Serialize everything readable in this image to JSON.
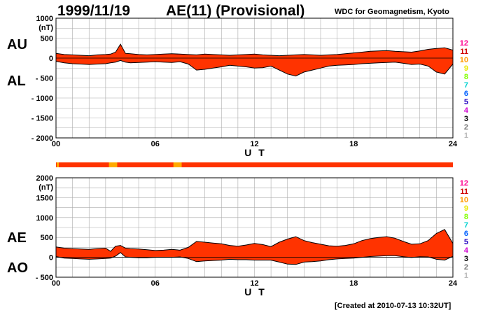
{
  "header": {
    "date": "1999/11/19",
    "title": "AE(11) (Provisional)",
    "institution": "WDC for Geomagnetism, Kyoto",
    "created": "[Created at 2010-07-13 10:32UT]"
  },
  "legend": {
    "values": [
      "12",
      "11",
      "10",
      "9",
      "8",
      "7",
      "6",
      "5",
      "4",
      "3",
      "2",
      "1"
    ],
    "colors": [
      "#ff0090",
      "#d00000",
      "#ff9900",
      "#e8e800",
      "#80ff00",
      "#00d0d0",
      "#0060ff",
      "#2000c0",
      "#d000d0",
      "#000000",
      "#777777",
      "#bbbbbb"
    ]
  },
  "colors": {
    "fill": "#ff3300",
    "fill_low": "#ffaa00",
    "grid": "#aaaaaa",
    "line": "#000000"
  },
  "chart_data": [
    {
      "type": "area",
      "panel": "top",
      "xlabel": "U T",
      "ylabel": "(nT)",
      "xlim": [
        0,
        24
      ],
      "ylim": [
        -2000,
        1000
      ],
      "xticks": [
        "00",
        "06",
        "12",
        "18",
        "24"
      ],
      "yticks": [
        "1000",
        "500",
        "0",
        "- 500",
        "- 1000",
        "- 1500",
        "- 2000"
      ],
      "series_labels": [
        "AU",
        "AL"
      ],
      "x": [
        0,
        0.5,
        1,
        1.5,
        2,
        2.5,
        3,
        3.3,
        3.6,
        3.9,
        4.2,
        4.5,
        5,
        5.5,
        6,
        6.5,
        7,
        7.5,
        8,
        8.5,
        9,
        9.5,
        10,
        10.5,
        11,
        11.5,
        12,
        12.5,
        13,
        13.5,
        14,
        14.5,
        15,
        15.5,
        16,
        16.5,
        17,
        17.5,
        18,
        18.5,
        19,
        19.5,
        20,
        20.5,
        21,
        21.5,
        22,
        22.5,
        23,
        23.5,
        24
      ],
      "series": [
        {
          "name": "AU",
          "values": [
            120,
            90,
            80,
            70,
            60,
            80,
            90,
            100,
            150,
            350,
            120,
            110,
            90,
            80,
            90,
            100,
            110,
            100,
            90,
            80,
            100,
            90,
            80,
            70,
            80,
            90,
            100,
            80,
            70,
            60,
            70,
            80,
            90,
            80,
            70,
            80,
            90,
            110,
            130,
            150,
            170,
            180,
            190,
            170,
            160,
            150,
            180,
            220,
            240,
            260,
            200
          ]
        },
        {
          "name": "AL",
          "values": [
            -80,
            -120,
            -140,
            -150,
            -160,
            -150,
            -140,
            -120,
            -100,
            -60,
            -100,
            -120,
            -110,
            -100,
            -90,
            -100,
            -110,
            -90,
            -150,
            -300,
            -280,
            -250,
            -220,
            -180,
            -200,
            -220,
            -250,
            -240,
            -200,
            -300,
            -400,
            -450,
            -350,
            -300,
            -250,
            -200,
            -180,
            -170,
            -160,
            -140,
            -130,
            -120,
            -110,
            -100,
            -130,
            -160,
            -150,
            -200,
            -350,
            -400,
            -150
          ]
        }
      ]
    },
    {
      "type": "area",
      "panel": "bottom",
      "xlabel": "U T",
      "ylabel": "(nT)",
      "xlim": [
        0,
        24
      ],
      "ylim": [
        -500,
        2000
      ],
      "xticks": [
        "00",
        "06",
        "12",
        "18",
        "24"
      ],
      "yticks": [
        "2000",
        "1500",
        "1000",
        "500",
        "0",
        "- 500"
      ],
      "series_labels": [
        "AE",
        "AO"
      ],
      "x": [
        0,
        0.5,
        1,
        1.5,
        2,
        2.5,
        3,
        3.3,
        3.6,
        3.9,
        4.2,
        4.5,
        5,
        5.5,
        6,
        6.5,
        7,
        7.5,
        8,
        8.5,
        9,
        9.5,
        10,
        10.5,
        11,
        11.5,
        12,
        12.5,
        13,
        13.5,
        14,
        14.5,
        15,
        15.5,
        16,
        16.5,
        17,
        17.5,
        18,
        18.5,
        19,
        19.5,
        20,
        20.5,
        21,
        21.5,
        22,
        22.5,
        23,
        23.5,
        24
      ],
      "series": [
        {
          "name": "AE",
          "values": [
            260,
            230,
            220,
            210,
            200,
            220,
            230,
            150,
            280,
            300,
            230,
            220,
            210,
            190,
            170,
            180,
            200,
            180,
            250,
            400,
            380,
            360,
            340,
            300,
            280,
            310,
            350,
            320,
            270,
            380,
            460,
            520,
            420,
            370,
            330,
            290,
            280,
            300,
            340,
            420,
            470,
            500,
            520,
            480,
            400,
            330,
            340,
            420,
            600,
            700,
            350
          ]
        },
        {
          "name": "AO",
          "values": [
            20,
            -20,
            -30,
            -40,
            -50,
            -40,
            -30,
            -20,
            30,
            120,
            10,
            0,
            -10,
            -10,
            0,
            0,
            0,
            10,
            -30,
            -110,
            -90,
            -80,
            -70,
            -50,
            -60,
            -60,
            -70,
            -70,
            -70,
            -120,
            -170,
            -180,
            -120,
            -110,
            -90,
            -60,
            -40,
            -30,
            -20,
            0,
            20,
            30,
            40,
            40,
            15,
            -5,
            15,
            10,
            -50,
            -70,
            25
          ]
        }
      ]
    }
  ]
}
